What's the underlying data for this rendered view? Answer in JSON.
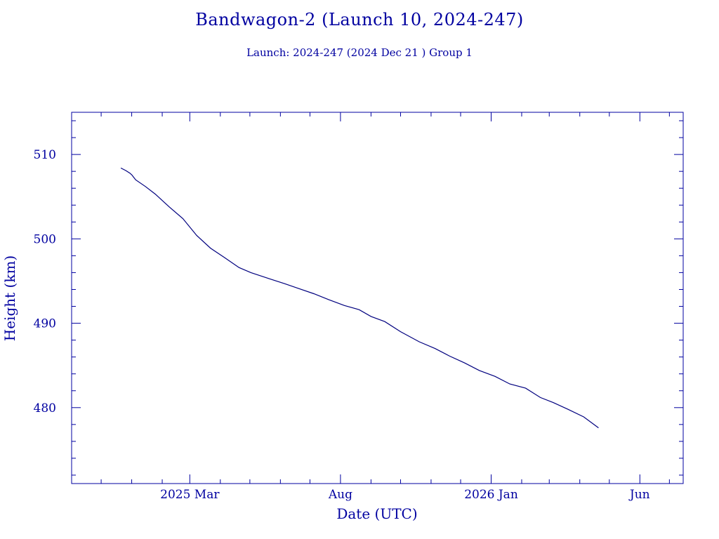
{
  "title": "Bandwagon-2 (Launch 10, 2024-247)",
  "subtitle": "Launch: 2024-247  (2024 Dec 21 )  Group 1",
  "colors": {
    "axis": "#0000a0",
    "line": "#00007f",
    "background": "#ffffff"
  },
  "chart_data": {
    "type": "line",
    "title": "Bandwagon-2 (Launch 10, 2024-247)",
    "xlabel": "Date (UTC)",
    "ylabel": "Height (km)",
    "xlim": [
      "2024-11-01",
      "2026-07-15"
    ],
    "ylim": [
      471,
      515
    ],
    "x_ticks": [
      {
        "date": "2025-03-01",
        "label": "2025 Mar"
      },
      {
        "date": "2025-08-01",
        "label": "Aug"
      },
      {
        "date": "2026-01-01",
        "label": "2026 Jan"
      },
      {
        "date": "2026-06-01",
        "label": "Jun"
      }
    ],
    "y_ticks": [
      480,
      490,
      500,
      510
    ],
    "grid": false,
    "series": [
      {
        "x": [
          "2024-12-21",
          "2024-12-26",
          "2024-12-30",
          "2025-01-01",
          "2025-01-05",
          "2025-01-15",
          "2025-01-25",
          "2025-02-08",
          "2025-02-22",
          "2025-03-08",
          "2025-03-22",
          "2025-04-05",
          "2025-04-20",
          "2025-05-02",
          "2025-05-20",
          "2025-06-05",
          "2025-06-20",
          "2025-07-05",
          "2025-07-20",
          "2025-08-05",
          "2025-08-20",
          "2025-09-01",
          "2025-09-15",
          "2025-10-01",
          "2025-10-20",
          "2025-11-05",
          "2025-11-20",
          "2025-12-05",
          "2025-12-20",
          "2026-01-05",
          "2026-01-20",
          "2026-02-05",
          "2026-02-20",
          "2026-03-05",
          "2026-03-20",
          "2026-04-05",
          "2026-04-20"
        ],
        "y": [
          508.4,
          508.1,
          507.8,
          507.6,
          507.0,
          506.2,
          505.3,
          503.8,
          502.4,
          500.4,
          498.9,
          497.8,
          496.6,
          496.0,
          495.3,
          494.7,
          494.1,
          493.5,
          492.8,
          492.1,
          491.6,
          490.8,
          490.2,
          489.0,
          487.8,
          487.0,
          486.1,
          485.3,
          484.4,
          483.7,
          482.8,
          482.3,
          481.2,
          480.6,
          479.8,
          478.9,
          477.6
        ]
      }
    ]
  }
}
